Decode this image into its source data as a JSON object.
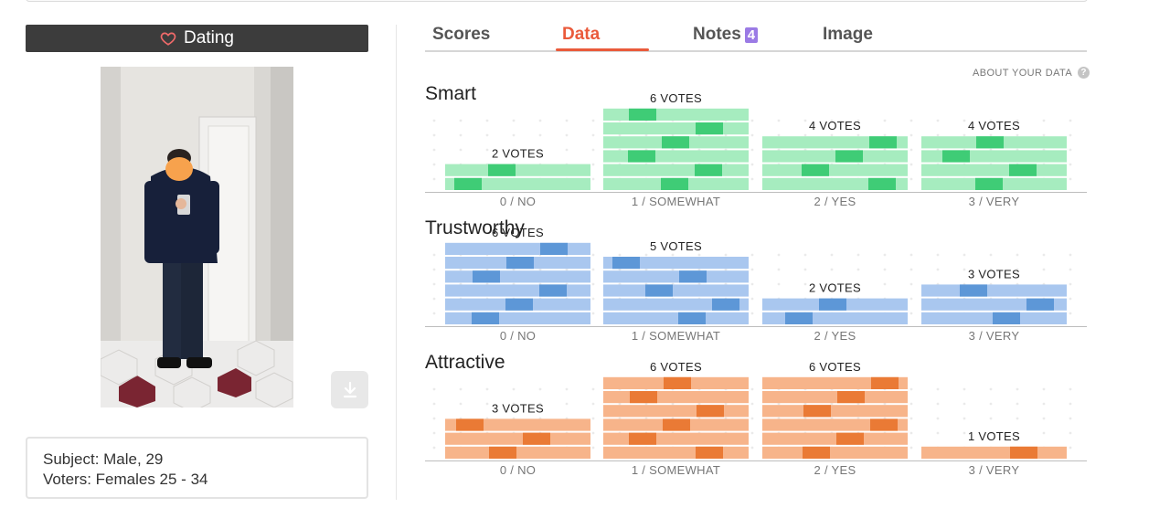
{
  "header": {
    "category_label": "Dating"
  },
  "photo": {
    "description_icon": "person-photo"
  },
  "info": {
    "subject": "Subject: Male, 29",
    "voters": "Voters: Females 25 - 34"
  },
  "tabs": [
    {
      "label": "Scores",
      "active": false
    },
    {
      "label": "Data",
      "active": true
    },
    {
      "label": "Notes",
      "badge": "4",
      "active": false
    },
    {
      "label": "Image",
      "active": false
    }
  ],
  "about_data": "ABOUT YOUR DATA",
  "chart_data": [
    {
      "type": "bar",
      "title": "Smart",
      "categories": [
        "0 / NO",
        "1 / SOMEWHAT",
        "2 / YES",
        "3 / VERY"
      ],
      "values": [
        2,
        6,
        4,
        4
      ],
      "vote_labels": [
        "2 VOTES",
        "6 VOTES",
        "4 VOTES",
        "4 VOTES"
      ],
      "color_light": "#a6ecbf",
      "color_dark": "#3fcc76"
    },
    {
      "type": "bar",
      "title": "Trustworthy",
      "categories": [
        "0 / NO",
        "1 / SOMEWHAT",
        "2 / YES",
        "3 / VERY"
      ],
      "values": [
        6,
        5,
        2,
        3
      ],
      "vote_labels": [
        "6 VOTES",
        "5 VOTES",
        "2 VOTES",
        "3 VOTES"
      ],
      "color_light": "#a9c7ef",
      "color_dark": "#5d97d7"
    },
    {
      "type": "bar",
      "title": "Attractive",
      "categories": [
        "0 / NO",
        "1 / SOMEWHAT",
        "2 / YES",
        "3 / VERY"
      ],
      "values": [
        3,
        6,
        6,
        1
      ],
      "vote_labels": [
        "3 VOTES",
        "6 VOTES",
        "6 VOTES",
        "1 VOTES"
      ],
      "color_light": "#f7b48a",
      "color_dark": "#ea7a35"
    }
  ]
}
